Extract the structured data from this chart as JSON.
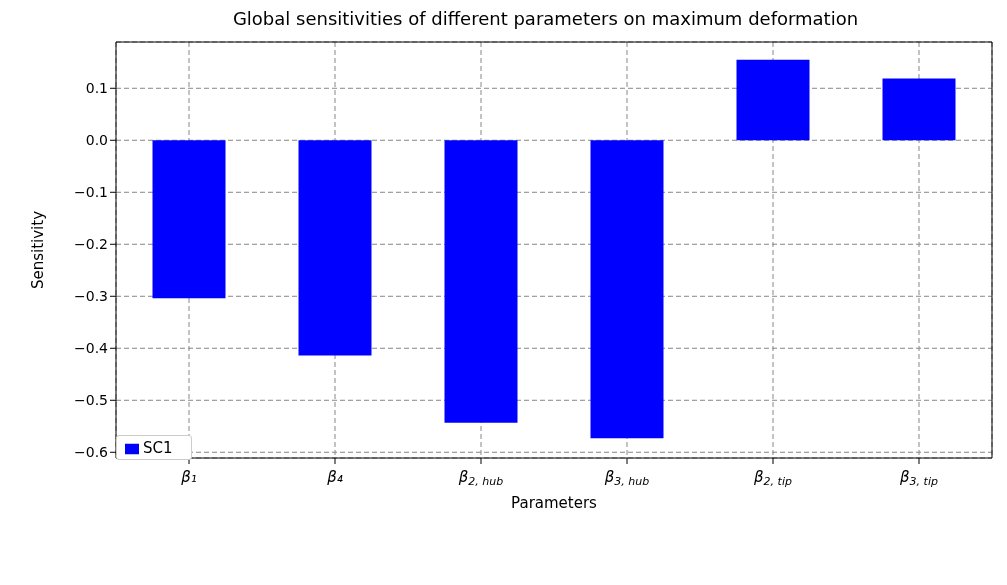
{
  "chart_data": {
    "type": "bar",
    "title": "Global sensitivities of different parameters on maximum deformation",
    "xlabel": "Parameters",
    "ylabel": "Sensitivity",
    "categories": [
      "β₁",
      "β₄",
      "β$_{2, hub}$",
      "β$_{3, hub}$",
      "β$_{2, tip}$",
      "β$_{3, tip}$"
    ],
    "series": [
      {
        "name": "SC1",
        "color": "#0000ff",
        "values": [
          -0.304,
          -0.414,
          -0.543,
          -0.573,
          0.155,
          0.119
        ]
      }
    ],
    "ylim": [
      -0.611,
      0.189
    ],
    "yticks": [
      {
        "value": -0.6,
        "label": "−0.6"
      },
      {
        "value": -0.5,
        "label": "−0.5"
      },
      {
        "value": -0.4,
        "label": "−0.4"
      },
      {
        "value": -0.3,
        "label": "−0.3"
      },
      {
        "value": -0.2,
        "label": "−0.2"
      },
      {
        "value": -0.1,
        "label": "−0.1"
      },
      {
        "value": 0,
        "label": "0.0"
      },
      {
        "value": 0.1,
        "label": "0.1"
      }
    ],
    "grid": true,
    "legend": "bottom left"
  }
}
